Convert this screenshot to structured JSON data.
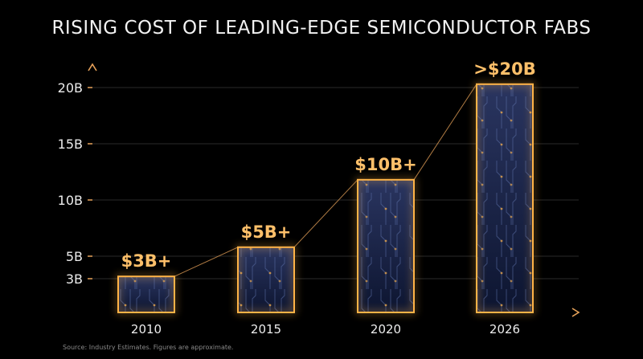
{
  "chart_data": {
    "type": "bar",
    "title": "RISING COST OF LEADING-EDGE SEMICONDUCTOR FABS",
    "xlabel": "",
    "ylabel": "",
    "categories": [
      "2010",
      "2015",
      "2020",
      "2026"
    ],
    "values": [
      3.2,
      5.8,
      11.8,
      20.3
    ],
    "data_labels": [
      "$3B+",
      "$5B+",
      "$10B+",
      ">$20B"
    ],
    "yticks": [
      3,
      5,
      10,
      15,
      20
    ],
    "ytick_labels": [
      "3B",
      "5B",
      "10B",
      "15B",
      "20B"
    ],
    "ylim": [
      0,
      22.5
    ],
    "grid": true,
    "legend": "none",
    "connector_line": true,
    "colors": {
      "background": "#000000",
      "bar_fill_top": "#2a3560",
      "bar_fill_bottom": "#0d1530",
      "bar_outline": "#ffb347",
      "glow": "#ff9a2e",
      "axis": "#e8a35a",
      "grid": "#2a2a2a",
      "data_label": "#ffc06a"
    }
  },
  "source_note": "Source: Industry Estimates. Figures are approximate."
}
